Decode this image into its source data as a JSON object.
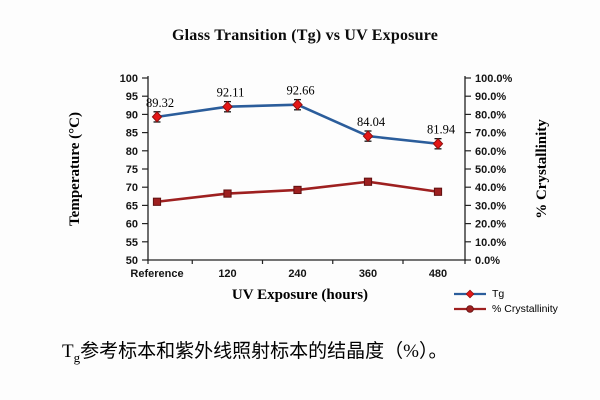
{
  "figure": {
    "title": "Glass Transition (Tg) vs UV Exposure",
    "caption": {
      "prefix": "T",
      "subscript": "g",
      "body": "参考标本和紫外线照射标本的结晶度（%）。"
    }
  },
  "chart_data": {
    "type": "line",
    "title": "Glass Transition (Tg) vs UV Exposure",
    "categories": [
      "Reference",
      "120",
      "240",
      "360",
      "480"
    ],
    "xlabel": "UV Exposure (hours)",
    "axes": {
      "left": {
        "label": "Temperature (°C)",
        "min": 50,
        "max": 100,
        "step": 5,
        "format": "integer"
      },
      "right": {
        "label": "% Crystallinity",
        "min": 0,
        "max": 100,
        "step": 10,
        "format": "percent1"
      }
    },
    "grid": false,
    "error_bar_color": "#151515",
    "series": [
      {
        "name": "Tg",
        "axis": "left",
        "marker": "diamond",
        "line_color": "#2b5d9b",
        "marker_color": "#e41717",
        "marker_edge": "#8f0f0f",
        "values": [
          89.32,
          92.11,
          92.66,
          84.04,
          81.94
        ],
        "data_labels": [
          "89.32",
          "92.11",
          "92.66",
          "84.04",
          "81.94"
        ],
        "error_bar": 1.4
      },
      {
        "name": "% Crystallinity",
        "axis": "right",
        "marker": "square",
        "line_color": "#9e2020",
        "marker_color": "#9e2020",
        "marker_edge": "#5f1010",
        "values": [
          32.0,
          36.5,
          38.5,
          43.0,
          37.5
        ],
        "data_labels": [],
        "error_bar": 1.5
      }
    ],
    "legend": {
      "position": "bottom-right",
      "entries": [
        "Tg",
        "% Crystallinity"
      ]
    }
  }
}
